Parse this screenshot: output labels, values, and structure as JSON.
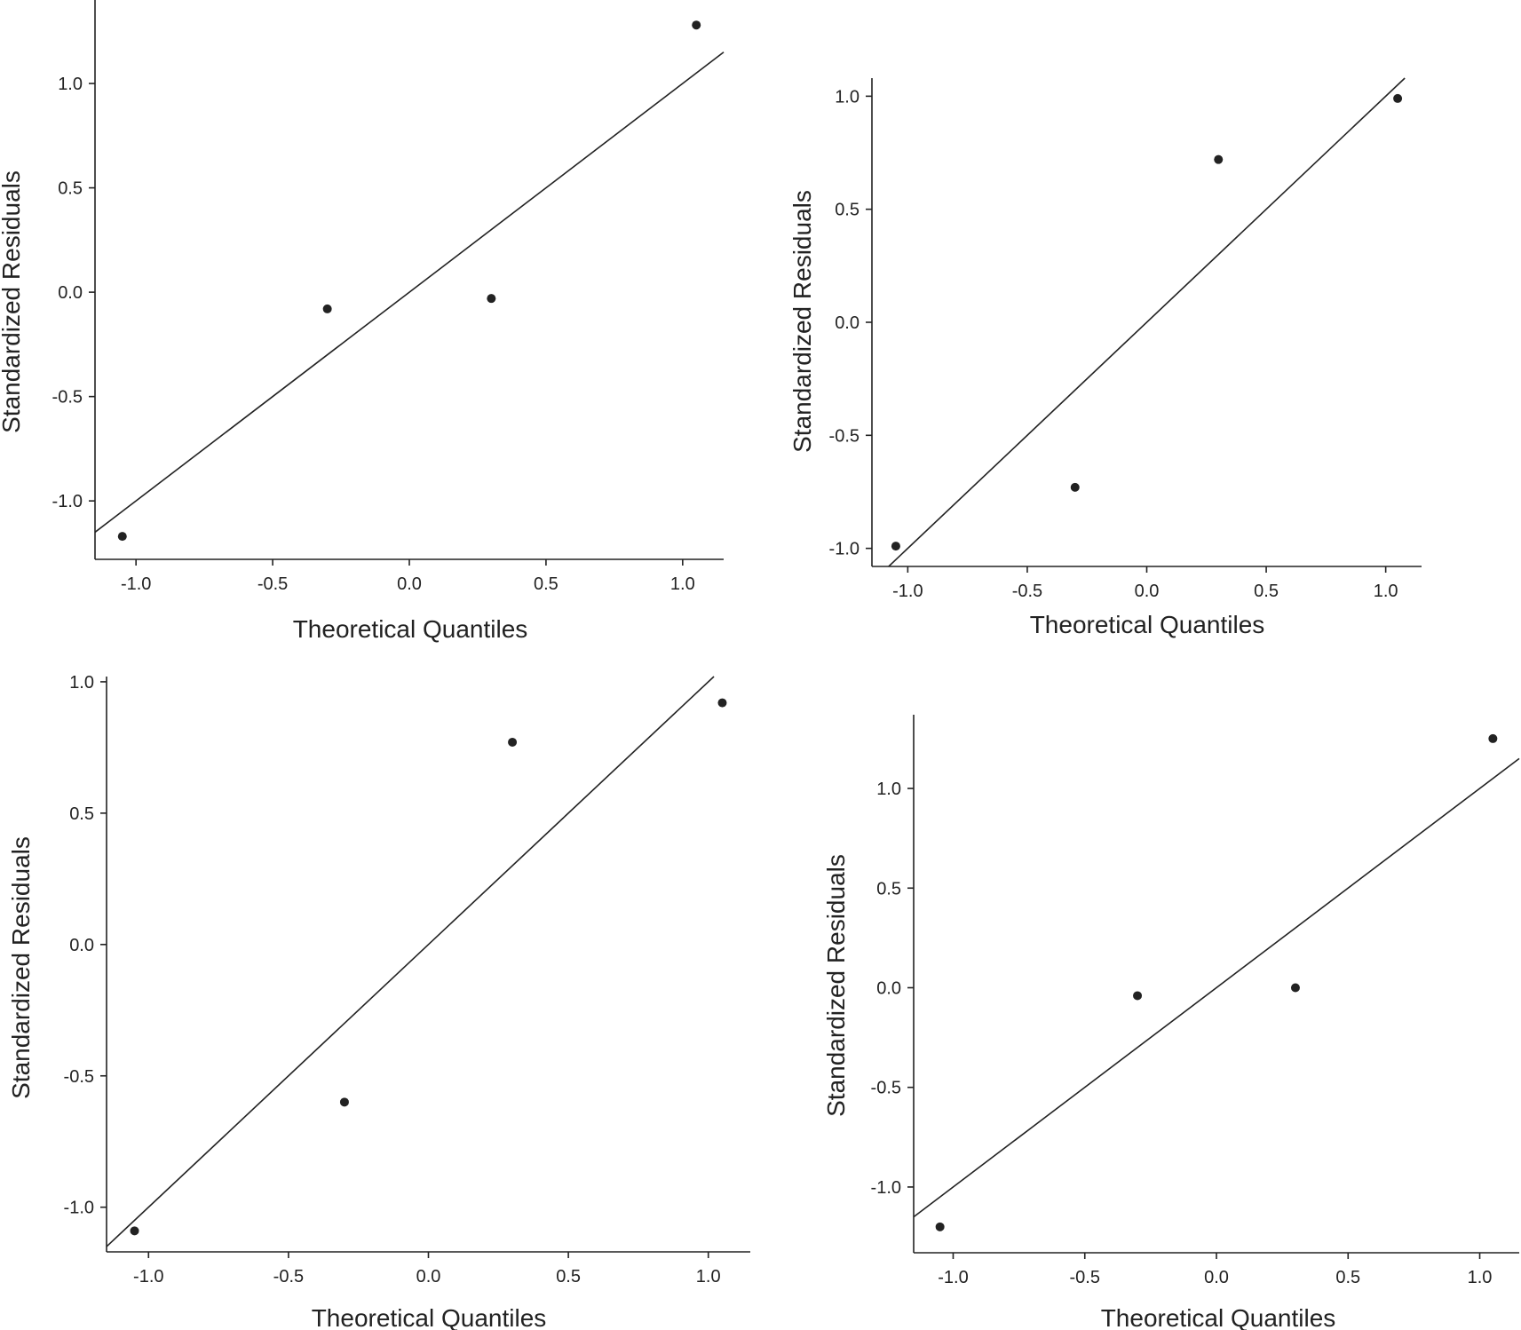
{
  "chart_data": [
    {
      "type": "scatter",
      "title": "",
      "xlabel": "Theoretical Quantiles",
      "ylabel": "Standardized Residuals",
      "xlim": [
        -1.15,
        1.15
      ],
      "ylim": [
        -1.28,
        1.4
      ],
      "xticks": [
        -1.0,
        -0.5,
        0.0,
        0.5,
        1.0
      ],
      "yticks": [
        -1.0,
        -0.5,
        0.0,
        0.5,
        1.0
      ],
      "points": [
        {
          "x": -1.05,
          "y": -1.17
        },
        {
          "x": -0.3,
          "y": -0.08
        },
        {
          "x": 0.3,
          "y": -0.03
        },
        {
          "x": 1.05,
          "y": 1.28
        }
      ],
      "reference_line": {
        "slope": 1.0,
        "intercept": 0.0
      }
    },
    {
      "type": "scatter",
      "title": "",
      "xlabel": "Theoretical Quantiles",
      "ylabel": "Standardized Residuals",
      "xlim": [
        -1.15,
        1.15
      ],
      "ylim": [
        -1.08,
        1.08
      ],
      "xticks": [
        -1.0,
        -0.5,
        0.0,
        0.5,
        1.0
      ],
      "yticks": [
        -1.0,
        -0.5,
        0.0,
        0.5,
        1.0
      ],
      "points": [
        {
          "x": -1.05,
          "y": -0.99
        },
        {
          "x": -0.3,
          "y": -0.73
        },
        {
          "x": 0.3,
          "y": 0.72
        },
        {
          "x": 1.05,
          "y": 0.99
        }
      ],
      "reference_line": {
        "slope": 1.0,
        "intercept": 0.0
      }
    },
    {
      "type": "scatter",
      "title": "",
      "xlabel": "Theoretical Quantiles",
      "ylabel": "Standardized Residuals",
      "xlim": [
        -1.15,
        1.15
      ],
      "ylim": [
        -1.17,
        1.02
      ],
      "xticks": [
        -1.0,
        -0.5,
        0.0,
        0.5,
        1.0
      ],
      "yticks": [
        -1.0,
        -0.5,
        0.0,
        0.5,
        1.0
      ],
      "points": [
        {
          "x": -1.05,
          "y": -1.09
        },
        {
          "x": -0.3,
          "y": -0.6
        },
        {
          "x": 0.3,
          "y": 0.77
        },
        {
          "x": 1.05,
          "y": 0.92
        }
      ],
      "reference_line": {
        "slope": 1.0,
        "intercept": 0.0
      }
    },
    {
      "type": "scatter",
      "title": "",
      "xlabel": "Theoretical Quantiles",
      "ylabel": "Standardized Residuals",
      "xlim": [
        -1.15,
        1.15
      ],
      "ylim": [
        -1.33,
        1.37
      ],
      "xticks": [
        -1.0,
        -0.5,
        0.0,
        0.5,
        1.0
      ],
      "yticks": [
        -1.0,
        -0.5,
        0.0,
        0.5,
        1.0
      ],
      "points": [
        {
          "x": -1.05,
          "y": -1.2
        },
        {
          "x": -0.3,
          "y": -0.04
        },
        {
          "x": 0.3,
          "y": 0.0
        },
        {
          "x": 1.05,
          "y": 1.25
        }
      ],
      "reference_line": {
        "slope": 1.0,
        "intercept": 0.0
      }
    }
  ]
}
